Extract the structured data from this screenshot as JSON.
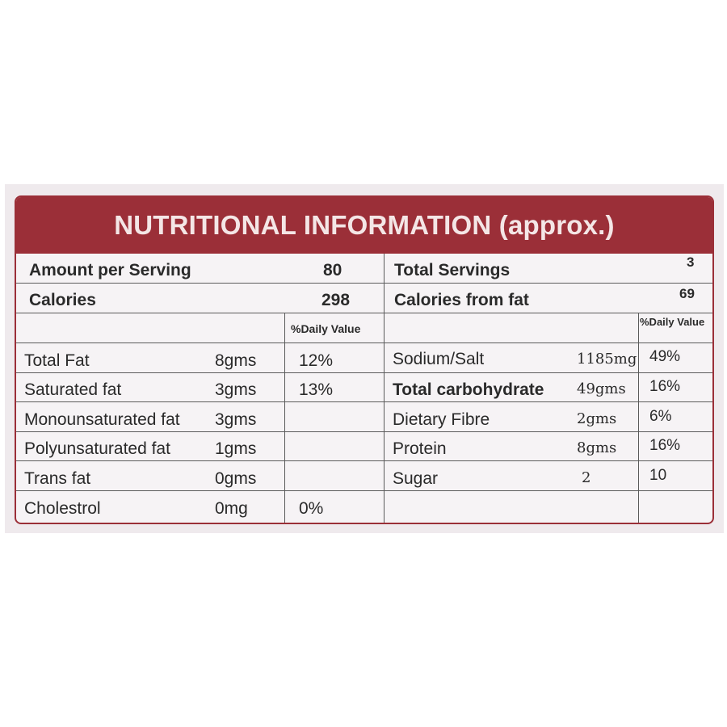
{
  "title": "NUTRITIONAL INFORMATION (approx.)",
  "summary": {
    "amount_per_serving_label": "Amount per Serving",
    "amount_per_serving_value": "80",
    "calories_label": "Calories",
    "calories_value": "298",
    "total_servings_label": "Total Servings",
    "total_servings_value": "3",
    "calories_from_fat_label": "Calories from fat",
    "calories_from_fat_value": "69"
  },
  "daily_value_header": "%Daily Value",
  "left_rows": [
    {
      "nutrient": "Total Fat",
      "amount": "8gms",
      "dv": "12%"
    },
    {
      "nutrient": "Saturated fat",
      "amount": "3gms",
      "dv": "13%"
    },
    {
      "nutrient": "Monounsaturated fat",
      "amount": "3gms",
      "dv": ""
    },
    {
      "nutrient": "Polyunsaturated fat",
      "amount": "1gms",
      "dv": ""
    },
    {
      "nutrient": "Trans fat",
      "amount": "0gms",
      "dv": ""
    },
    {
      "nutrient": "Cholestrol",
      "amount": "0mg",
      "dv": "0%"
    }
  ],
  "right_rows": [
    {
      "nutrient": "Sodium/Salt",
      "amount": "1185mg",
      "dv": "49%"
    },
    {
      "nutrient": "Total carbohydrate",
      "amount": "49gms",
      "dv": "16%"
    },
    {
      "nutrient": "Dietary Fibre",
      "amount": "2gms",
      "dv": "6%"
    },
    {
      "nutrient": "Protein",
      "amount": "8gms",
      "dv": "16%"
    },
    {
      "nutrient": "Sugar",
      "amount": "2",
      "dv": "10"
    }
  ],
  "colors": {
    "banner": "#9b2f38",
    "banner_text": "#f4e6e6",
    "label_bg": "#f6f3f5"
  }
}
